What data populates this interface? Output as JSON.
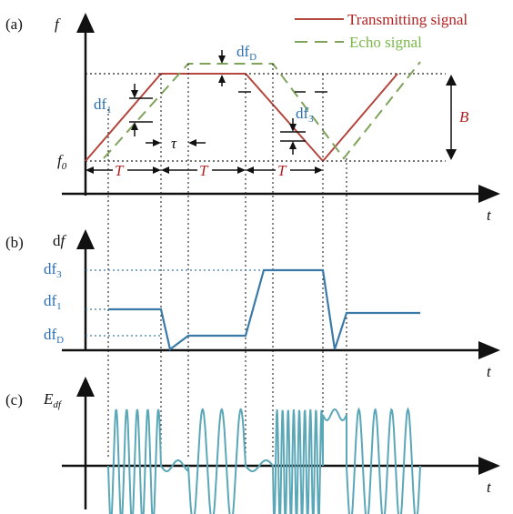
{
  "panel_labels": {
    "a": "(a)",
    "b": "(b)",
    "c": "(c)"
  },
  "legend": {
    "transmit": {
      "label": "Transmitting signal",
      "color": "#b5463e"
    },
    "echo": {
      "label": "Echo signal",
      "color": "#7fa35a"
    }
  },
  "axes": {
    "a_y": "f",
    "a_x": "t",
    "b_y_main": "d",
    "b_y_var": "f",
    "b_x": "t",
    "c_y_main": "E",
    "c_y_sub": "df",
    "c_x": "t"
  },
  "annotations": {
    "f0_main": "f",
    "f0_sub": "0",
    "df1_main": "df",
    "df1_sub": "1",
    "df3_main": "df",
    "df3_sub": "3",
    "dfD_main": "df",
    "dfD_sub": "D",
    "tau": "τ",
    "T": "T",
    "B": "B"
  },
  "b_levels": {
    "df3": {
      "main": "df",
      "sub": "3"
    },
    "df1": {
      "main": "df",
      "sub": "1"
    },
    "dfD": {
      "main": "df",
      "sub": "D"
    }
  },
  "colors": {
    "trace": "#3a7aa8",
    "wave": "#5aa7b8",
    "axis": "#111111",
    "dash": "#222222"
  }
}
